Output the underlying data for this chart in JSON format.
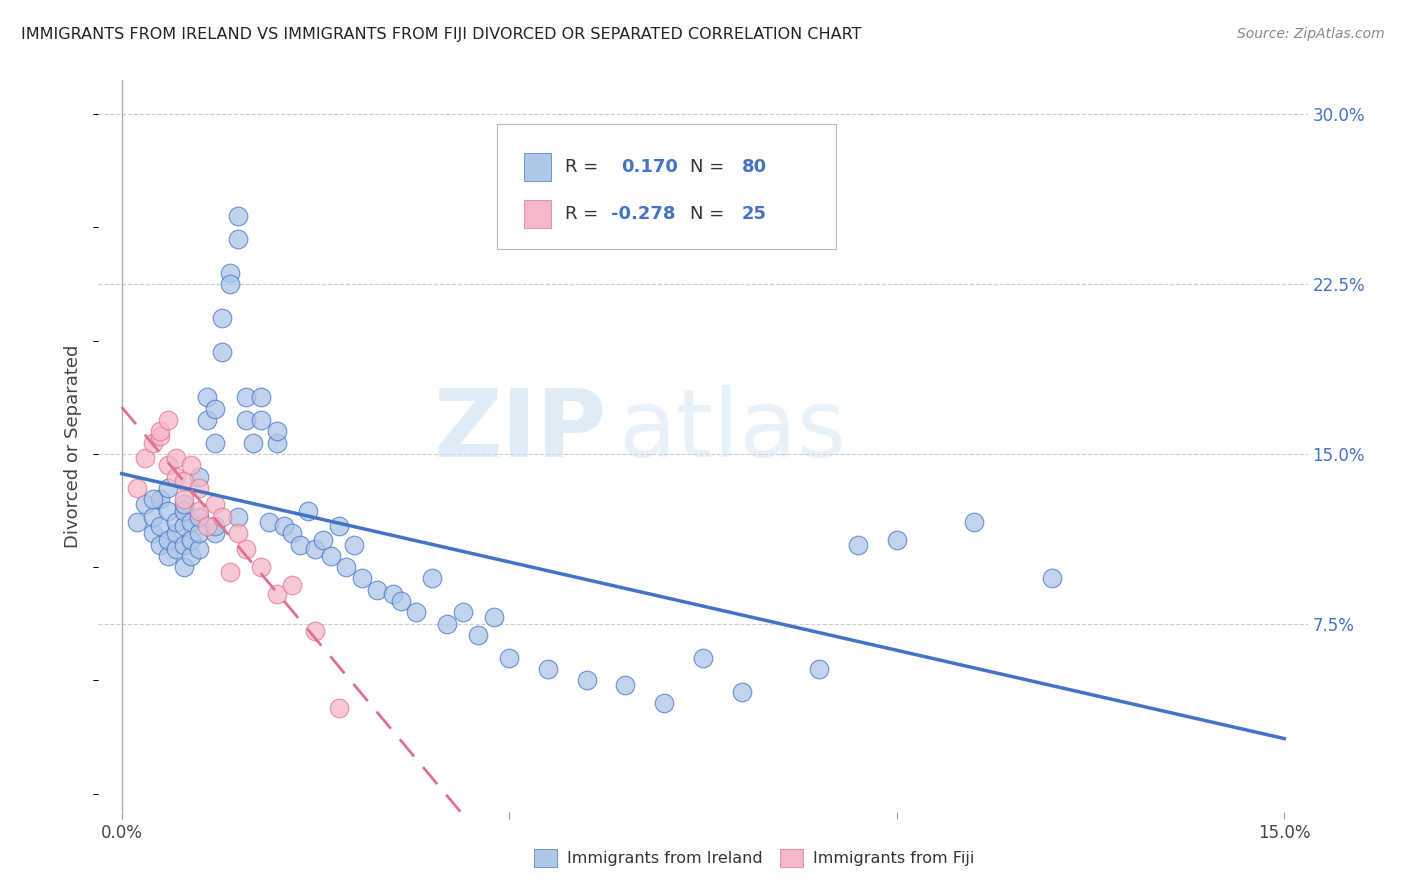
{
  "title": "IMMIGRANTS FROM IRELAND VS IMMIGRANTS FROM FIJI DIVORCED OR SEPARATED CORRELATION CHART",
  "source": "Source: ZipAtlas.com",
  "ylabel": "Divorced or Separated",
  "xlim": [
    0.0,
    0.15
  ],
  "ylim": [
    0.0,
    0.3
  ],
  "ireland_R": 0.17,
  "ireland_N": 80,
  "fiji_R": -0.278,
  "fiji_N": 25,
  "ireland_color": "#aec6e8",
  "fiji_color": "#f4b8c8",
  "ireland_line_color": "#4472c4",
  "fiji_line_color": "#e07090",
  "ireland_scatter_x": [
    0.002,
    0.003,
    0.004,
    0.004,
    0.005,
    0.005,
    0.005,
    0.006,
    0.006,
    0.006,
    0.007,
    0.007,
    0.007,
    0.008,
    0.008,
    0.008,
    0.008,
    0.009,
    0.009,
    0.009,
    0.01,
    0.01,
    0.01,
    0.011,
    0.011,
    0.012,
    0.012,
    0.012,
    0.013,
    0.013,
    0.014,
    0.014,
    0.015,
    0.015,
    0.016,
    0.016,
    0.017,
    0.018,
    0.018,
    0.019,
    0.02,
    0.02,
    0.021,
    0.022,
    0.023,
    0.024,
    0.025,
    0.026,
    0.027,
    0.028,
    0.029,
    0.03,
    0.031,
    0.033,
    0.035,
    0.036,
    0.038,
    0.04,
    0.042,
    0.044,
    0.046,
    0.048,
    0.05,
    0.055,
    0.06,
    0.065,
    0.07,
    0.075,
    0.08,
    0.09,
    0.095,
    0.1,
    0.11,
    0.12,
    0.004,
    0.006,
    0.008,
    0.01,
    0.012,
    0.015
  ],
  "ireland_scatter_y": [
    0.12,
    0.128,
    0.115,
    0.122,
    0.11,
    0.118,
    0.13,
    0.105,
    0.112,
    0.125,
    0.108,
    0.115,
    0.12,
    0.1,
    0.11,
    0.118,
    0.125,
    0.105,
    0.112,
    0.12,
    0.108,
    0.115,
    0.122,
    0.165,
    0.175,
    0.155,
    0.17,
    0.115,
    0.195,
    0.21,
    0.23,
    0.225,
    0.255,
    0.245,
    0.175,
    0.165,
    0.155,
    0.175,
    0.165,
    0.12,
    0.155,
    0.16,
    0.118,
    0.115,
    0.11,
    0.125,
    0.108,
    0.112,
    0.105,
    0.118,
    0.1,
    0.11,
    0.095,
    0.09,
    0.088,
    0.085,
    0.08,
    0.095,
    0.075,
    0.08,
    0.07,
    0.078,
    0.06,
    0.055,
    0.05,
    0.048,
    0.04,
    0.06,
    0.045,
    0.055,
    0.11,
    0.112,
    0.12,
    0.095,
    0.13,
    0.135,
    0.128,
    0.14,
    0.118,
    0.122
  ],
  "fiji_scatter_x": [
    0.002,
    0.003,
    0.004,
    0.005,
    0.005,
    0.006,
    0.006,
    0.007,
    0.007,
    0.008,
    0.008,
    0.009,
    0.01,
    0.01,
    0.011,
    0.012,
    0.013,
    0.014,
    0.015,
    0.016,
    0.018,
    0.02,
    0.022,
    0.025,
    0.028
  ],
  "fiji_scatter_y": [
    0.135,
    0.148,
    0.155,
    0.158,
    0.16,
    0.145,
    0.165,
    0.14,
    0.148,
    0.13,
    0.138,
    0.145,
    0.125,
    0.135,
    0.118,
    0.128,
    0.122,
    0.098,
    0.115,
    0.108,
    0.1,
    0.088,
    0.092,
    0.072,
    0.038
  ],
  "watermark_line1": "ZIP",
  "watermark_line2": "atlas",
  "background_color": "#ffffff",
  "grid_color": "#cccccc",
  "tick_color": "#4472c4",
  "title_fontsize": 11.5,
  "source_fontsize": 10,
  "axis_label_fontsize": 13,
  "tick_fontsize": 12,
  "legend_fontsize": 13
}
